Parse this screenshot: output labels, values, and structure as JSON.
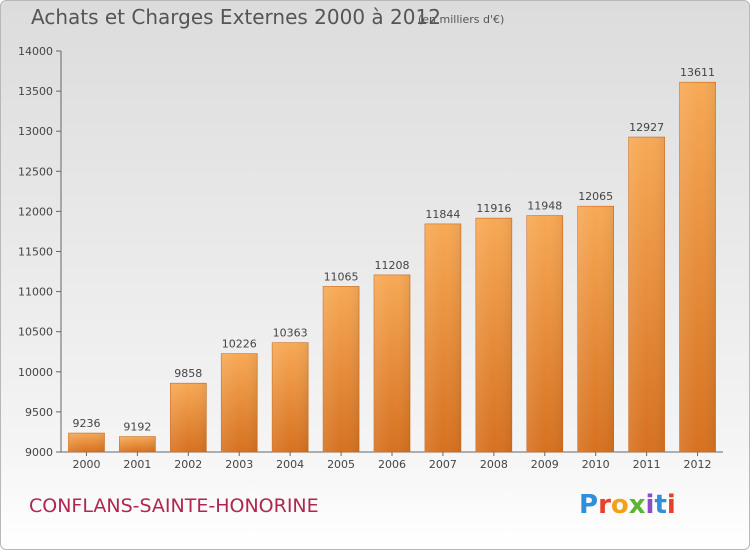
{
  "header": {
    "title": "Achats et Charges Externes 2000 à 2012",
    "units": "(en milliers d'€)"
  },
  "footer": {
    "city": "CONFLANS-SAINTE-HONORINE",
    "brand": "Proxiti"
  },
  "colors": {
    "bar_top": "#f7a955",
    "bar_bottom": "#d67120",
    "city": "#b0264f",
    "text": "#555555"
  },
  "chart_data": {
    "type": "bar",
    "title": "Achats et Charges Externes 2000 à 2012",
    "subtitle": "(en milliers d'€)",
    "xlabel": "",
    "ylabel": "",
    "categories": [
      "2000",
      "2001",
      "2002",
      "2003",
      "2004",
      "2005",
      "2006",
      "2007",
      "2008",
      "2009",
      "2010",
      "2011",
      "2012"
    ],
    "values": [
      9236,
      9192,
      9858,
      10226,
      10363,
      11065,
      11208,
      11844,
      11916,
      11948,
      12065,
      12927,
      13611
    ],
    "ylim": [
      9000,
      14000
    ],
    "yticks": [
      9000,
      9500,
      10000,
      10500,
      11000,
      11500,
      12000,
      12500,
      13000,
      13500,
      14000
    ],
    "grid": false,
    "legend": "none"
  }
}
